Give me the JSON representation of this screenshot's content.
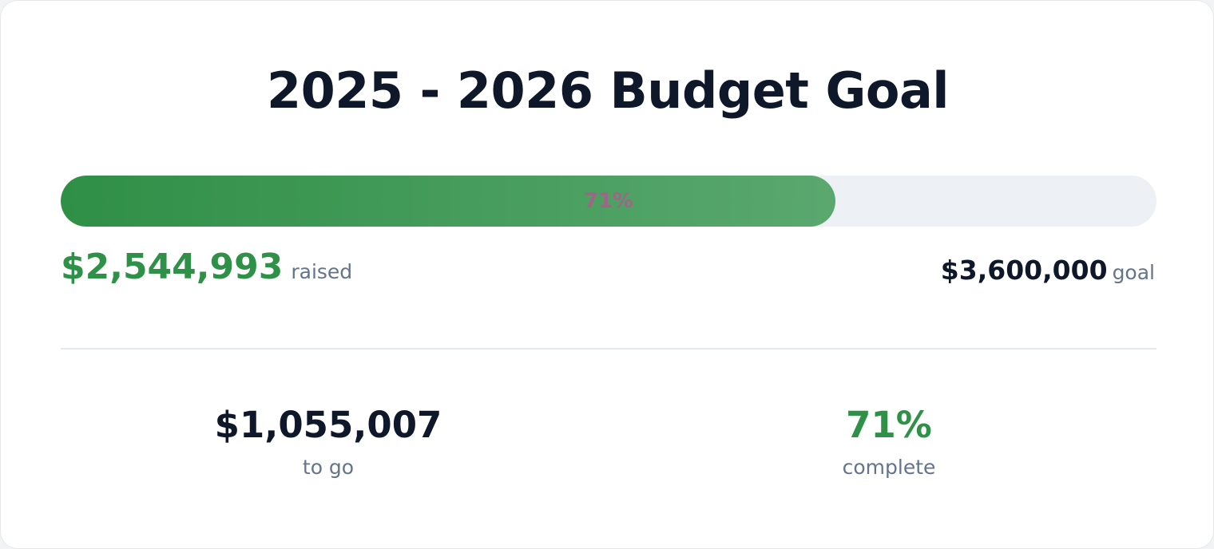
{
  "title": "2025 - 2026 Budget Goal",
  "progress": {
    "bar_label": "71%",
    "raised": {
      "value": 2544993,
      "label": "$2,544,993"
    },
    "raised_caption": "raised",
    "goal": {
      "value": 3600000,
      "label": "$3,600,000"
    },
    "goal_caption": "goal"
  },
  "stats": [
    {
      "value": "$1,055,007",
      "caption": "to go"
    },
    {
      "value": "71%",
      "caption": "complete"
    }
  ]
}
